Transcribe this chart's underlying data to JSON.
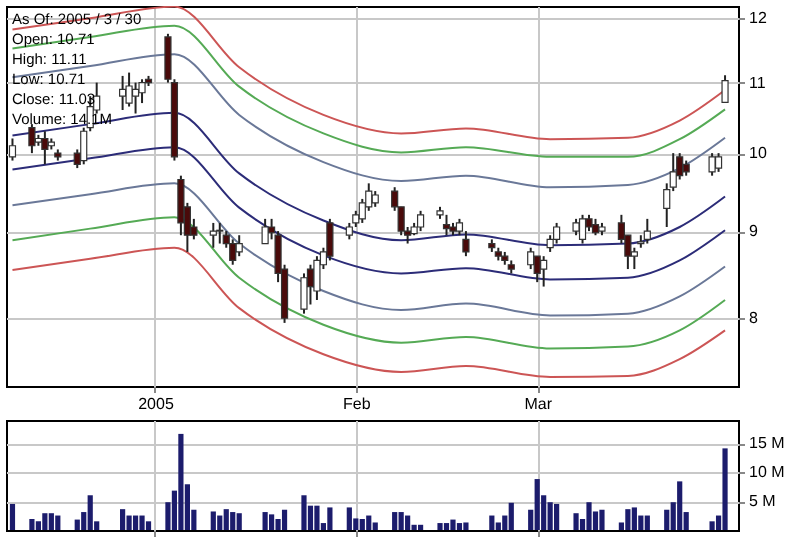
{
  "chart_data": [
    {
      "type": "candlestick",
      "x": [
        "2004-12-10",
        "2004-12-13",
        "2004-12-14",
        "2004-12-15",
        "2004-12-16",
        "2004-12-17",
        "2004-12-20",
        "2004-12-21",
        "2004-12-22",
        "2004-12-23",
        "2004-12-27",
        "2004-12-28",
        "2004-12-29",
        "2004-12-30",
        "2004-12-31",
        "2005-01-03",
        "2005-01-04",
        "2005-01-05",
        "2005-01-06",
        "2005-01-07",
        "2005-01-10",
        "2005-01-11",
        "2005-01-12",
        "2005-01-13",
        "2005-01-14",
        "2005-01-18",
        "2005-01-19",
        "2005-01-20",
        "2005-01-21",
        "2005-01-24",
        "2005-01-25",
        "2005-01-26",
        "2005-01-27",
        "2005-01-28",
        "2005-01-31",
        "2005-02-01",
        "2005-02-02",
        "2005-02-03",
        "2005-02-04",
        "2005-02-07",
        "2005-02-08",
        "2005-02-09",
        "2005-02-10",
        "2005-02-11",
        "2005-02-14",
        "2005-02-15",
        "2005-02-16",
        "2005-02-17",
        "2005-02-18",
        "2005-02-22",
        "2005-02-23",
        "2005-02-24",
        "2005-02-25",
        "2005-02-28",
        "2005-03-01",
        "2005-03-02",
        "2005-03-03",
        "2005-03-04",
        "2005-03-07",
        "2005-03-08",
        "2005-03-09",
        "2005-03-10",
        "2005-03-11",
        "2005-03-14",
        "2005-03-15",
        "2005-03-16",
        "2005-03-17",
        "2005-03-18",
        "2005-03-21",
        "2005-03-22",
        "2005-03-23",
        "2005-03-24",
        "2005-03-28",
        "2005-03-29",
        "2005-03-30"
      ],
      "ohlc": [
        [
          9.95,
          10.2,
          9.9,
          10.1
        ],
        [
          10.35,
          10.4,
          10.0,
          10.1
        ],
        [
          10.15,
          10.25,
          10.1,
          10.2
        ],
        [
          10.2,
          10.3,
          9.85,
          10.05
        ],
        [
          10.1,
          10.2,
          10.05,
          10.15
        ],
        [
          10.0,
          10.05,
          9.9,
          9.95
        ],
        [
          10.0,
          10.05,
          9.8,
          9.85
        ],
        [
          9.9,
          10.35,
          9.85,
          10.3
        ],
        [
          10.35,
          10.8,
          10.3,
          10.65
        ],
        [
          10.6,
          11.0,
          10.55,
          10.8
        ],
        [
          10.8,
          11.1,
          10.6,
          10.9
        ],
        [
          10.7,
          11.15,
          10.65,
          10.95
        ],
        [
          10.8,
          11.0,
          10.55,
          10.9
        ],
        [
          10.85,
          11.05,
          10.7,
          11.0
        ],
        [
          11.05,
          11.1,
          10.95,
          11.0
        ],
        [
          11.7,
          11.75,
          11.0,
          11.05
        ],
        [
          11.0,
          11.05,
          9.9,
          9.95
        ],
        [
          9.65,
          9.7,
          8.95,
          9.1
        ],
        [
          9.3,
          9.35,
          8.75,
          8.95
        ],
        [
          9.05,
          9.15,
          8.9,
          8.95
        ],
        [
          8.95,
          9.1,
          8.8,
          9.0
        ],
        [
          9.0,
          9.1,
          8.85,
          9.01
        ],
        [
          8.95,
          9.0,
          8.8,
          8.85
        ],
        [
          8.85,
          8.9,
          8.6,
          8.65
        ],
        [
          8.75,
          8.95,
          8.7,
          8.85
        ],
        [
          8.85,
          9.15,
          8.85,
          9.05
        ],
        [
          9.05,
          9.15,
          8.9,
          8.98
        ],
        [
          8.95,
          9.0,
          8.4,
          8.5
        ],
        [
          8.55,
          8.6,
          7.95,
          8.0
        ],
        [
          8.1,
          8.5,
          8.05,
          8.45
        ],
        [
          8.55,
          8.6,
          8.15,
          8.35
        ],
        [
          8.3,
          8.7,
          8.2,
          8.65
        ],
        [
          8.6,
          8.8,
          8.55,
          8.75
        ],
        [
          9.1,
          9.15,
          8.65,
          8.7
        ],
        [
          8.95,
          9.1,
          8.9,
          9.05
        ],
        [
          9.1,
          9.25,
          9.05,
          9.2
        ],
        [
          9.15,
          9.4,
          9.1,
          9.35
        ],
        [
          9.3,
          9.6,
          9.25,
          9.5
        ],
        [
          9.35,
          9.5,
          9.3,
          9.45
        ],
        [
          9.5,
          9.55,
          9.25,
          9.3
        ],
        [
          9.3,
          9.3,
          8.95,
          9.0
        ],
        [
          9.0,
          9.05,
          8.85,
          8.95
        ],
        [
          8.97,
          9.1,
          8.95,
          9.05
        ],
        [
          9.05,
          9.25,
          9.0,
          9.2
        ],
        [
          9.2,
          9.3,
          9.15,
          9.25
        ],
        [
          9.08,
          9.2,
          8.95,
          9.03
        ],
        [
          9.05,
          9.1,
          8.95,
          9.0
        ],
        [
          9.0,
          9.15,
          8.95,
          9.1
        ],
        [
          8.9,
          9.0,
          8.7,
          8.75
        ],
        [
          8.85,
          8.9,
          8.75,
          8.8
        ],
        [
          8.75,
          8.8,
          8.65,
          8.7
        ],
        [
          8.7,
          8.75,
          8.6,
          8.65
        ],
        [
          8.6,
          8.65,
          8.5,
          8.55
        ],
        [
          8.6,
          8.8,
          8.55,
          8.75
        ],
        [
          8.7,
          8.7,
          8.4,
          8.5
        ],
        [
          8.55,
          8.7,
          8.35,
          8.65
        ],
        [
          8.8,
          8.95,
          8.75,
          8.9
        ],
        [
          8.9,
          9.1,
          8.85,
          9.05
        ],
        [
          9.0,
          9.15,
          8.95,
          9.1
        ],
        [
          8.9,
          9.2,
          8.85,
          9.15
        ],
        [
          9.15,
          9.2,
          9.0,
          9.05
        ],
        [
          9.08,
          9.15,
          8.95,
          8.98
        ],
        [
          9.0,
          9.1,
          8.95,
          9.05
        ],
        [
          9.1,
          9.2,
          8.85,
          8.9
        ],
        [
          8.95,
          8.95,
          8.55,
          8.7
        ],
        [
          8.7,
          8.8,
          8.55,
          8.75
        ],
        [
          8.85,
          8.95,
          8.8,
          8.87
        ],
        [
          8.9,
          9.15,
          8.85,
          9.0
        ],
        [
          9.28,
          9.6,
          9.05,
          9.52
        ],
        [
          9.55,
          10.0,
          9.5,
          9.75
        ],
        [
          9.95,
          10.0,
          9.65,
          9.7
        ],
        [
          9.85,
          9.9,
          9.7,
          9.75
        ],
        [
          9.75,
          10.0,
          9.7,
          9.95
        ],
        [
          9.8,
          10.0,
          9.75,
          9.95
        ],
        [
          10.71,
          11.11,
          10.71,
          11.03
        ]
      ],
      "series": [
        {
          "type": "line",
          "color": "#cc5555",
          "x": [
            "2004-12-10",
            "2004-12-22",
            "2005-01-04",
            "2005-01-14",
            "2005-01-27",
            "2005-02-08",
            "2005-02-18",
            "2005-03-03",
            "2005-03-15",
            "2005-03-23",
            "2005-03-30"
          ],
          "values": [
            11.82,
            12.0,
            12.19,
            11.23,
            10.53,
            10.27,
            10.34,
            10.19,
            10.21,
            10.45,
            10.89
          ]
        },
        {
          "type": "line",
          "color": "#55aa55",
          "x": [
            "2004-12-10",
            "2004-12-22",
            "2005-01-04",
            "2005-01-14",
            "2005-01-27",
            "2005-02-08",
            "2005-02-18",
            "2005-03-03",
            "2005-03-15",
            "2005-03-23",
            "2005-03-30"
          ],
          "values": [
            11.52,
            11.7,
            11.88,
            10.94,
            10.27,
            10.01,
            10.08,
            9.95,
            9.95,
            10.19,
            10.61
          ]
        },
        {
          "type": "line",
          "color": "#6a7898",
          "x": [
            "2004-12-10",
            "2004-12-22",
            "2005-01-04",
            "2005-01-14",
            "2005-01-27",
            "2005-02-08",
            "2005-02-18",
            "2005-03-03",
            "2005-03-15",
            "2005-03-23",
            "2005-03-30"
          ],
          "values": [
            11.08,
            11.25,
            11.43,
            10.53,
            9.88,
            9.63,
            9.7,
            9.55,
            9.58,
            9.8,
            10.21
          ]
        },
        {
          "type": "line",
          "color": "#2c2c78",
          "x": [
            "2004-12-10",
            "2004-12-22",
            "2005-01-04",
            "2005-01-14",
            "2005-01-27",
            "2005-02-08",
            "2005-02-18",
            "2005-03-03",
            "2005-03-15",
            "2005-03-23",
            "2005-03-30"
          ],
          "values": [
            10.24,
            10.4,
            10.56,
            9.73,
            9.13,
            8.89,
            8.96,
            8.83,
            8.85,
            9.05,
            9.43
          ]
        },
        {
          "type": "line",
          "color": "#2c2c78",
          "x": [
            "2004-12-10",
            "2004-12-22",
            "2005-01-04",
            "2005-01-14",
            "2005-01-27",
            "2005-02-08",
            "2005-02-18",
            "2005-03-03",
            "2005-03-15",
            "2005-03-23",
            "2005-03-30"
          ],
          "values": [
            9.78,
            9.93,
            10.08,
            9.29,
            8.71,
            8.5,
            8.56,
            8.43,
            8.45,
            8.65,
            9.01
          ]
        },
        {
          "type": "line",
          "color": "#6a7898",
          "x": [
            "2004-12-10",
            "2004-12-22",
            "2005-01-04",
            "2005-01-14",
            "2005-01-27",
            "2005-02-08",
            "2005-02-18",
            "2005-03-03",
            "2005-03-15",
            "2005-03-23",
            "2005-03-30"
          ],
          "values": [
            9.32,
            9.46,
            9.6,
            8.85,
            8.3,
            8.09,
            8.16,
            8.03,
            8.05,
            8.24,
            8.58
          ]
        },
        {
          "type": "line",
          "color": "#55aa55",
          "x": [
            "2004-12-10",
            "2004-12-22",
            "2005-01-04",
            "2005-01-14",
            "2005-01-27",
            "2005-02-08",
            "2005-02-18",
            "2005-03-03",
            "2005-03-15",
            "2005-03-23",
            "2005-03-30"
          ],
          "values": [
            8.89,
            9.03,
            9.17,
            8.45,
            7.93,
            7.74,
            7.8,
            7.68,
            7.7,
            7.87,
            8.2
          ]
        },
        {
          "type": "line",
          "color": "#cc5555",
          "x": [
            "2004-12-10",
            "2004-12-22",
            "2005-01-04",
            "2005-01-14",
            "2005-01-27",
            "2005-02-08",
            "2005-02-18",
            "2005-03-03",
            "2005-03-15",
            "2005-03-23",
            "2005-03-30"
          ],
          "values": [
            8.54,
            8.67,
            8.8,
            8.11,
            7.62,
            7.44,
            7.5,
            7.39,
            7.4,
            7.57,
            7.87
          ]
        }
      ],
      "xlim": [
        "2004-12-09",
        "2005-04-01"
      ],
      "xticks": [
        {
          "value": "2005-01-01",
          "label": "2005"
        },
        {
          "value": "2005-02-01",
          "label": "Feb"
        },
        {
          "value": "2005-03-01",
          "label": "Mar"
        }
      ],
      "ylim": [
        7.3,
        12.2
      ],
      "yticks": [
        8,
        9,
        10,
        11,
        12
      ],
      "log": true,
      "grid": true,
      "annotations": [
        "As Of: 2005 / 3 / 30",
        "Open: 10.71",
        "High: 11.11",
        "Low: 10.71",
        "Close: 11.03",
        "Volume: 14.1M"
      ]
    },
    {
      "type": "bar",
      "x": [
        "2004-12-10",
        "2004-12-13",
        "2004-12-14",
        "2004-12-15",
        "2004-12-16",
        "2004-12-17",
        "2004-12-20",
        "2004-12-21",
        "2004-12-22",
        "2004-12-23",
        "2004-12-27",
        "2004-12-28",
        "2004-12-29",
        "2004-12-30",
        "2004-12-31",
        "2005-01-03",
        "2005-01-04",
        "2005-01-05",
        "2005-01-06",
        "2005-01-07",
        "2005-01-10",
        "2005-01-11",
        "2005-01-12",
        "2005-01-13",
        "2005-01-14",
        "2005-01-18",
        "2005-01-19",
        "2005-01-20",
        "2005-01-21",
        "2005-01-24",
        "2005-01-25",
        "2005-01-26",
        "2005-01-27",
        "2005-01-28",
        "2005-01-31",
        "2005-02-01",
        "2005-02-02",
        "2005-02-03",
        "2005-02-04",
        "2005-02-07",
        "2005-02-08",
        "2005-02-09",
        "2005-02-10",
        "2005-02-11",
        "2005-02-14",
        "2005-02-15",
        "2005-02-16",
        "2005-02-17",
        "2005-02-18",
        "2005-02-22",
        "2005-02-23",
        "2005-02-24",
        "2005-02-25",
        "2005-02-28",
        "2005-03-01",
        "2005-03-02",
        "2005-03-03",
        "2005-03-04",
        "2005-03-07",
        "2005-03-08",
        "2005-03-09",
        "2005-03-10",
        "2005-03-11",
        "2005-03-14",
        "2005-03-15",
        "2005-03-16",
        "2005-03-17",
        "2005-03-18",
        "2005-03-21",
        "2005-03-22",
        "2005-03-23",
        "2005-03-24",
        "2005-03-28",
        "2005-03-29",
        "2005-03-30"
      ],
      "values": [
        4.5,
        1.9,
        1.5,
        2.9,
        2.9,
        2.5,
        1.8,
        3.1,
        6.0,
        1.5,
        3.6,
        2.5,
        2.5,
        2.5,
        1.5,
        4.8,
        6.8,
        16.6,
        7.9,
        3.5,
        3.2,
        2.5,
        3.6,
        3.1,
        2.9,
        3.1,
        2.7,
        1.9,
        3.5,
        6.0,
        4.2,
        4.2,
        1.2,
        3.9,
        3.9,
        2.0,
        1.9,
        2.5,
        1.3,
        3.1,
        3.1,
        2.5,
        0.9,
        0.9,
        1.2,
        1.2,
        1.8,
        1.2,
        1.3,
        2.5,
        1.3,
        2.5,
        4.7,
        3.5,
        8.8,
        6.0,
        4.8,
        4.5,
        2.9,
        1.9,
        4.8,
        3.2,
        3.5,
        1.3,
        3.6,
        3.9,
        2.5,
        2.5,
        3.5,
        4.8,
        8.4,
        3.1,
        1.5,
        2.5,
        14.1
      ],
      "color": "#1c1c6c",
      "xlim": [
        "2004-12-09",
        "2005-04-01"
      ],
      "xticks": [
        {
          "value": "2005-01-01",
          "label": null
        },
        {
          "value": "2005-02-01",
          "label": null
        },
        {
          "value": "2005-03-01",
          "label": null
        }
      ],
      "ylim": [
        0,
        19
      ],
      "yticks": [
        {
          "value": 5,
          "label": "5 M"
        },
        {
          "value": 10,
          "label": "10 M"
        },
        {
          "value": 15,
          "label": "15 M"
        }
      ],
      "tick_labels": "y",
      "grid": true
    }
  ]
}
